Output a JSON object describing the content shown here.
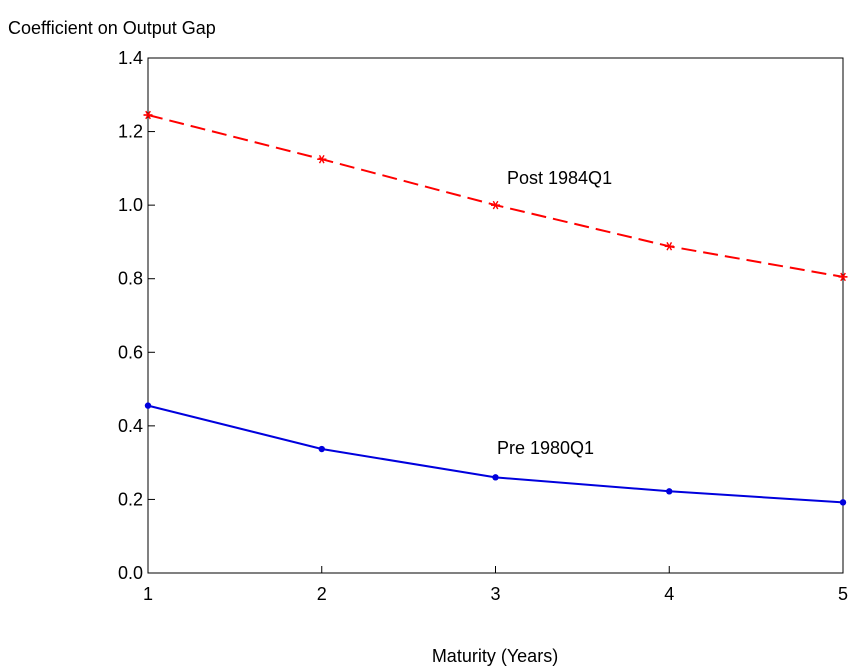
{
  "chart_data": {
    "type": "line",
    "title": "",
    "ylabel": "Coefficient on Output Gap",
    "xlabel": "Maturity (Years)",
    "x": [
      1,
      2,
      3,
      4,
      5
    ],
    "xlim": [
      1,
      5
    ],
    "ylim": [
      0.0,
      1.4
    ],
    "xticks": [
      "1",
      "2",
      "3",
      "4",
      "5"
    ],
    "yticks": [
      "0.0",
      "0.2",
      "0.4",
      "0.6",
      "0.8",
      "1.0",
      "1.2",
      "1.4"
    ],
    "grid": false,
    "legend": "none",
    "series": [
      {
        "name": "Post 1984Q1",
        "values": [
          1.245,
          1.125,
          1.0,
          0.888,
          0.805
        ],
        "color": "#ff0000",
        "style": "dashed",
        "marker": "asterisk"
      },
      {
        "name": "Pre 1980Q1",
        "values": [
          0.455,
          0.337,
          0.26,
          0.222,
          0.192
        ],
        "color": "#0000dd",
        "style": "solid",
        "marker": "dot"
      }
    ]
  }
}
